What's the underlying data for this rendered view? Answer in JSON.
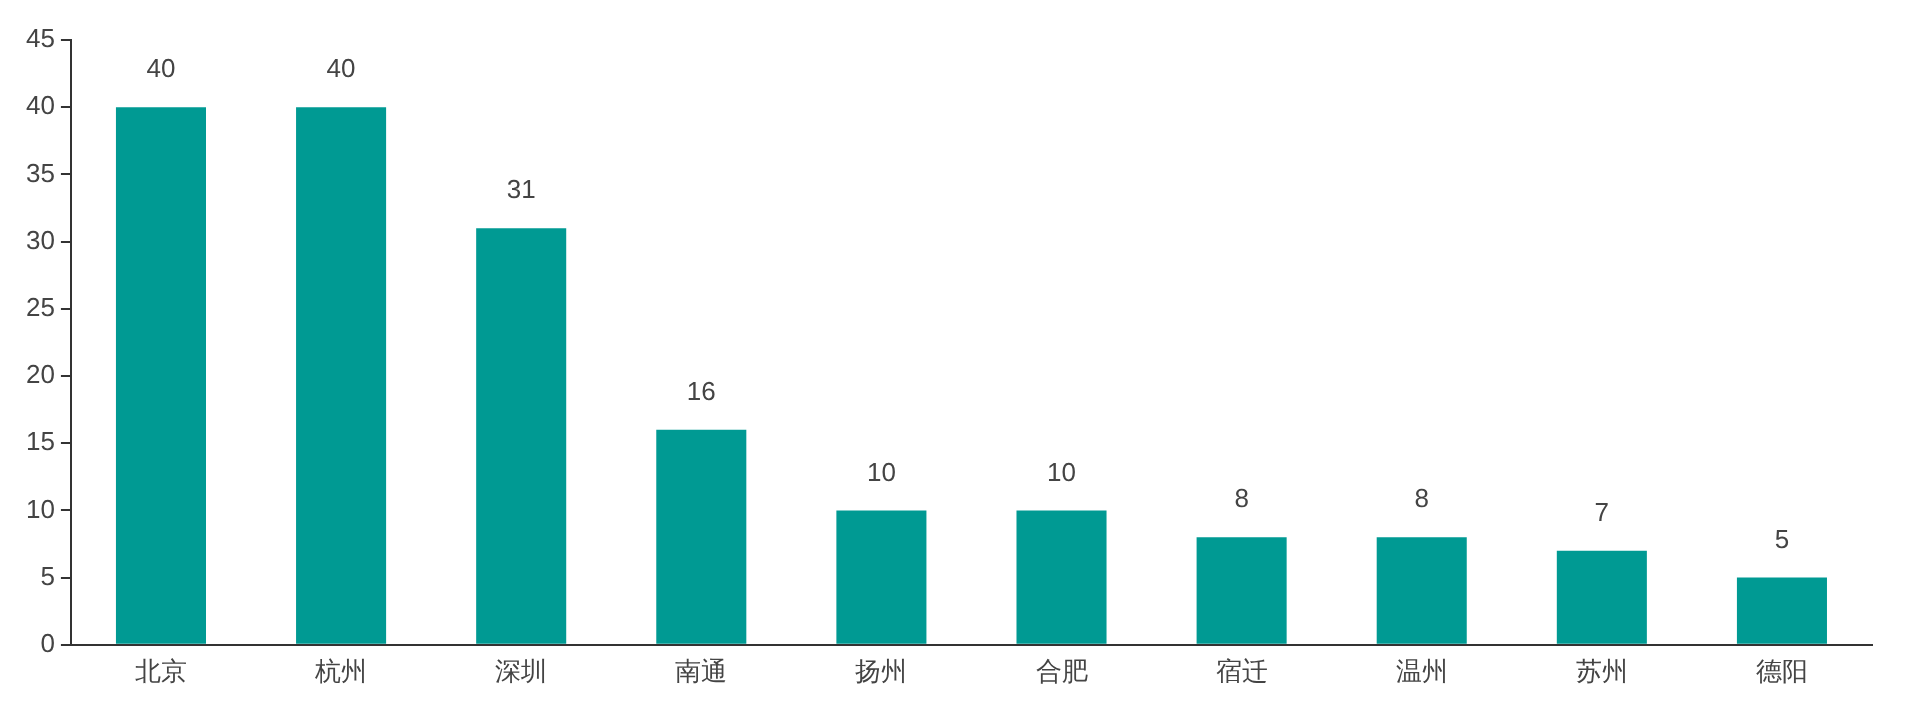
{
  "chart_data": {
    "type": "bar",
    "categories": [
      "北京",
      "杭州",
      "深圳",
      "南通",
      "扬州",
      "合肥",
      "宿迁",
      "温州",
      "苏州",
      "德阳"
    ],
    "values": [
      40,
      40,
      31,
      16,
      10,
      10,
      8,
      8,
      7,
      5
    ],
    "color": "#009a93",
    "ylim": [
      0,
      45
    ],
    "yticks": [
      0,
      5,
      10,
      15,
      20,
      25,
      30,
      35,
      40,
      45
    ],
    "grid": false,
    "legend": false,
    "data_labels": true
  }
}
